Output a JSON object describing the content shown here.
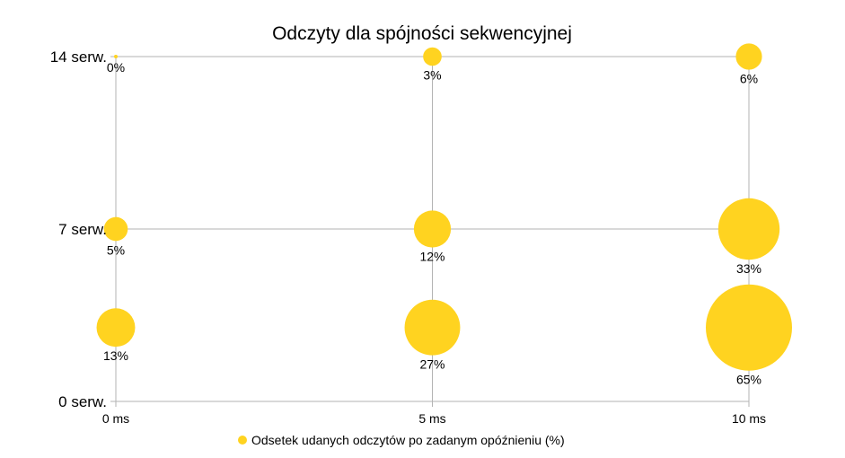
{
  "chart_data": {
    "type": "bubble",
    "title": "Odczyty dla spójności sekwencyjnej",
    "xlabel": "",
    "ylabel": "",
    "x_ticks": [
      "0 ms",
      "5 ms",
      "10 ms"
    ],
    "y_ticks": [
      "0 serw.",
      "7 serw.",
      "14 serw."
    ],
    "xlim": [
      0,
      10
    ],
    "ylim": [
      0,
      14
    ],
    "grid": true,
    "legend_position": "bottom",
    "series": [
      {
        "name": "Odsetek udanych odczytów po zadanym opóźnieniu (%)",
        "color": "#ffd320",
        "points": [
          {
            "x": 0,
            "y": 3,
            "value": 13,
            "label": "13%"
          },
          {
            "x": 5,
            "y": 3,
            "value": 27,
            "label": "27%"
          },
          {
            "x": 10,
            "y": 3,
            "value": 65,
            "label": "65%"
          },
          {
            "x": 0,
            "y": 7,
            "value": 5,
            "label": "5%"
          },
          {
            "x": 5,
            "y": 7,
            "value": 12,
            "label": "12%"
          },
          {
            "x": 10,
            "y": 7,
            "value": 33,
            "label": "33%"
          },
          {
            "x": 0,
            "y": 14,
            "value": 0,
            "label": "0%"
          },
          {
            "x": 5,
            "y": 14,
            "value": 3,
            "label": "3%"
          },
          {
            "x": 10,
            "y": 14,
            "value": 6,
            "label": "6%"
          }
        ]
      }
    ]
  }
}
